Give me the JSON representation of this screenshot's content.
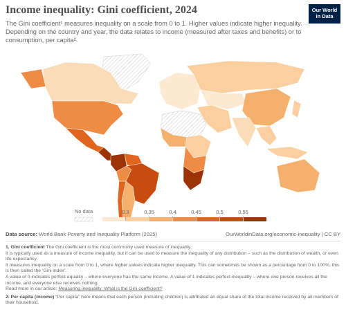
{
  "header": {
    "title": "Income inequality: Gini coefficient, 2024",
    "subtitle": "The Gini coefficient¹ measures inequality on a scale from 0 to 1. Higher values indicate higher inequality. Depending on the country and year, the data relates to income (measured after taxes and benefits) or to consumption, per capita².",
    "logo": [
      "Our World",
      "in Data"
    ]
  },
  "legend": {
    "no_data": "No data",
    "ticks": [
      0.3,
      0.35,
      0.4,
      0.45,
      0.5,
      0.55
    ],
    "colors": [
      "#fde8d2",
      "#fbcf9f",
      "#f6b06e",
      "#ee8b44",
      "#e0661f",
      "#c74c10",
      "#9b3306"
    ]
  },
  "footer": {
    "source_label": "Data source:",
    "source": "World Bank Poverty and Inequality Platform (2025)",
    "url": "OurWorldinData.org/economic-inequality | CC BY"
  },
  "notes": [
    {
      "label": "1. Gini coefficient",
      "lines": [
        "The Gini coefficient is the most commonly used measure of inequality.",
        "It is typically used as a measure of income inequality, but it can be used to measure the inequality of any distribution – such as the distribution of wealth, or even life expectancy.",
        "It measures inequality on a scale from 0 to 1, where higher values indicate higher inequality. This can sometimes be shown as a percentage from 0 to 100%, this is then called the ‘Gini index’.",
        "A value of 0 indicates perfect equality – where everyone has the same income. A value of 1 indicates perfect inequality – where one person receives all the income, and everyone else receives nothing."
      ],
      "more": "Read more in our article:",
      "link": "Measuring inequality: What is the Gini coefficient?"
    },
    {
      "label": "2. Per capita (income)",
      "lines": [
        "“Per capita” here means that each person (including children) is attributed an equal share of the total income received by all members of their household."
      ]
    }
  ]
}
